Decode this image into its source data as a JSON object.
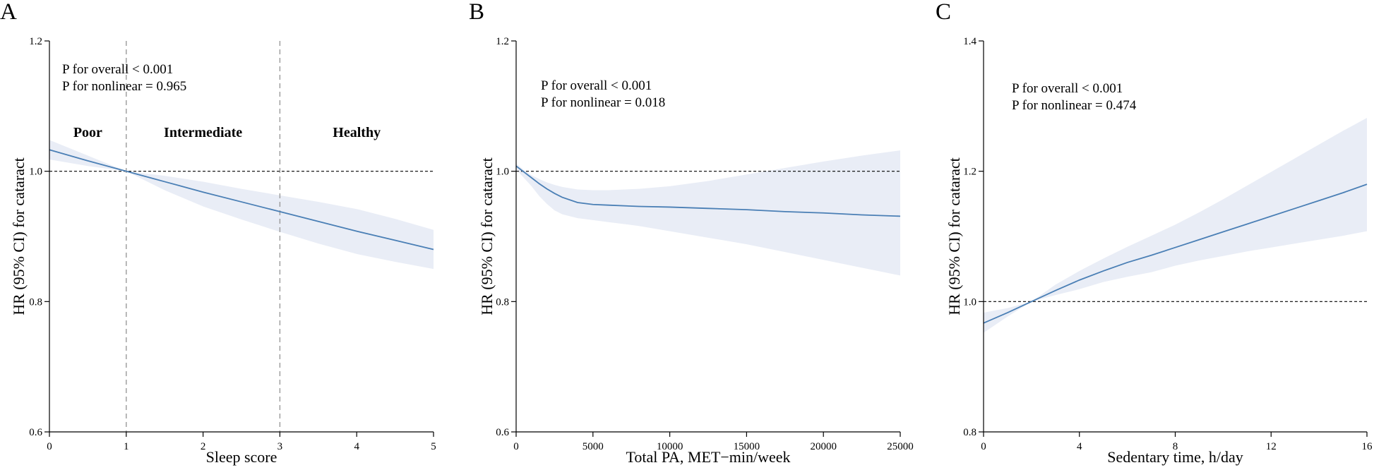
{
  "colors": {
    "curve": "#4a7fb5",
    "ci_band": "#e9edf6",
    "axis": "#000000",
    "reference_line": "#000000",
    "cutoff_line": "#9a9a9a"
  },
  "chart_data": [
    {
      "type": "line",
      "panel_label": "A",
      "xlabel": "Sleep score",
      "ylabel": "HR (95% CI) for cataract",
      "xlim": [
        0,
        5
      ],
      "ylim": [
        0.6,
        1.2
      ],
      "xticks": [
        0,
        1,
        2,
        3,
        4,
        5
      ],
      "yticks": [
        0.6,
        0.8,
        1.0,
        1.2
      ],
      "ytick_labels": [
        "0.6",
        "0.8",
        "1.0",
        "1.2"
      ],
      "reference_y": 1.0,
      "cutoff_x": [
        1,
        3
      ],
      "regions": [
        {
          "label": "Poor",
          "x": 0.5
        },
        {
          "label": "Intermediate",
          "x": 2
        },
        {
          "label": "Healthy",
          "x": 4
        }
      ],
      "annotations": [
        "P for overall < 0.001",
        "P for nonlinear = 0.965"
      ],
      "series": [
        {
          "name": "HR",
          "x": [
            0,
            0.5,
            1,
            1.5,
            2,
            2.5,
            3,
            3.5,
            4,
            4.5,
            5
          ],
          "y": [
            1.033,
            1.016,
            1.0,
            0.984,
            0.968,
            0.953,
            0.938,
            0.923,
            0.908,
            0.894,
            0.88
          ],
          "lower": [
            1.018,
            1.008,
            1.0,
            0.971,
            0.946,
            0.926,
            0.907,
            0.889,
            0.873,
            0.861,
            0.85
          ],
          "upper": [
            1.048,
            1.024,
            1.0,
            0.993,
            0.984,
            0.973,
            0.963,
            0.953,
            0.942,
            0.927,
            0.91
          ]
        }
      ]
    },
    {
      "type": "line",
      "panel_label": "B",
      "xlabel": "Total PA, MET−min/week",
      "ylabel": "HR (95% CI) for cataract",
      "xlim": [
        0,
        25000
      ],
      "ylim": [
        0.6,
        1.2
      ],
      "xticks": [
        0,
        5000,
        10000,
        15000,
        20000,
        25000
      ],
      "yticks": [
        0.6,
        0.8,
        1.0,
        1.2
      ],
      "ytick_labels": [
        "0.6",
        "0.8",
        "1.0",
        "1.2"
      ],
      "reference_y": 1.0,
      "cutoff_x": [],
      "regions": [],
      "annotations": [
        "P for overall < 0.001",
        "P for nonlinear = 0.018"
      ],
      "series": [
        {
          "name": "HR",
          "x": [
            0,
            500,
            1000,
            1500,
            2000,
            2500,
            3000,
            4000,
            5000,
            6000,
            8000,
            10000,
            12500,
            15000,
            17500,
            20000,
            22500,
            25000
          ],
          "y": [
            1.008,
            0.999,
            0.99,
            0.981,
            0.973,
            0.966,
            0.96,
            0.952,
            0.949,
            0.948,
            0.946,
            0.945,
            0.943,
            0.941,
            0.938,
            0.936,
            0.933,
            0.931
          ],
          "lower": [
            1.003,
            0.99,
            0.977,
            0.962,
            0.95,
            0.94,
            0.934,
            0.928,
            0.925,
            0.922,
            0.916,
            0.908,
            0.898,
            0.888,
            0.876,
            0.864,
            0.852,
            0.84
          ],
          "upper": [
            1.012,
            1.002,
            0.994,
            0.988,
            0.983,
            0.979,
            0.976,
            0.972,
            0.971,
            0.971,
            0.973,
            0.977,
            0.985,
            0.995,
            1.005,
            1.015,
            1.024,
            1.032
          ]
        }
      ]
    },
    {
      "type": "line",
      "panel_label": "C",
      "xlabel": "Sedentary time, h/day",
      "ylabel": "HR (95% CI) for cataract",
      "xlim": [
        0,
        16
      ],
      "ylim": [
        0.8,
        1.4
      ],
      "xticks": [
        0,
        4,
        8,
        12,
        16
      ],
      "yticks": [
        0.8,
        1.0,
        1.2,
        1.4
      ],
      "ytick_labels": [
        "0.8",
        "1.0",
        "1.2",
        "1.4"
      ],
      "reference_y": 1.0,
      "cutoff_x": [],
      "regions": [],
      "annotations": [
        "P for overall < 0.001",
        "P for nonlinear = 0.474"
      ],
      "series": [
        {
          "name": "HR",
          "x": [
            0,
            1,
            2,
            3,
            4,
            5,
            6,
            7,
            8,
            9,
            10,
            11,
            12,
            13,
            14,
            15,
            16
          ],
          "y": [
            0.967,
            0.983,
            1.0,
            1.017,
            1.033,
            1.047,
            1.06,
            1.071,
            1.083,
            1.095,
            1.107,
            1.119,
            1.131,
            1.143,
            1.155,
            1.167,
            1.18
          ],
          "lower": [
            0.952,
            0.977,
            1.0,
            1.01,
            1.019,
            1.03,
            1.038,
            1.045,
            1.055,
            1.063,
            1.07,
            1.077,
            1.083,
            1.089,
            1.095,
            1.101,
            1.108
          ],
          "upper": [
            0.983,
            0.99,
            1.0,
            1.026,
            1.047,
            1.066,
            1.084,
            1.101,
            1.118,
            1.137,
            1.157,
            1.178,
            1.199,
            1.22,
            1.241,
            1.262,
            1.282
          ]
        }
      ]
    }
  ]
}
